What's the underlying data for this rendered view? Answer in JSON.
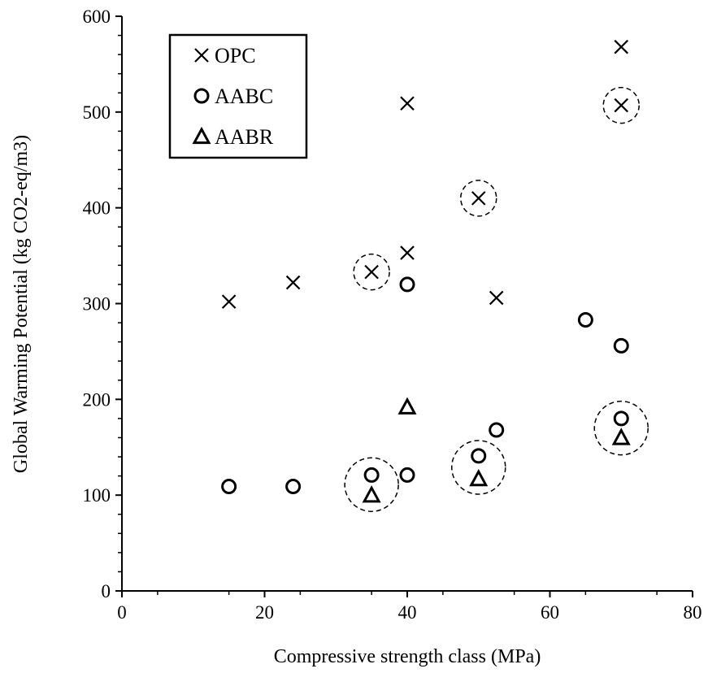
{
  "chart_data": {
    "type": "scatter",
    "title": "",
    "xlabel": "Compressive strength class (MPa)",
    "ylabel": "Global Warming Potential (kg CO2-eq/m3)",
    "xlim": [
      0,
      80
    ],
    "ylim": [
      0,
      600
    ],
    "x_ticks": [
      "0",
      "20",
      "40",
      "60",
      "80"
    ],
    "y_ticks": [
      "0",
      "100",
      "200",
      "300",
      "400",
      "500",
      "600"
    ],
    "grid": false,
    "legend_position": "top-left",
    "series": [
      {
        "name": "OPC",
        "marker": "cross",
        "points": [
          {
            "x": 15,
            "y": 302
          },
          {
            "x": 24,
            "y": 322
          },
          {
            "x": 35,
            "y": 333
          },
          {
            "x": 40,
            "y": 353
          },
          {
            "x": 40,
            "y": 509
          },
          {
            "x": 50,
            "y": 410
          },
          {
            "x": 52.5,
            "y": 306
          },
          {
            "x": 70,
            "y": 507
          },
          {
            "x": 70,
            "y": 568
          }
        ]
      },
      {
        "name": "AABC",
        "marker": "circle",
        "points": [
          {
            "x": 15,
            "y": 109
          },
          {
            "x": 24,
            "y": 109
          },
          {
            "x": 35,
            "y": 121
          },
          {
            "x": 40,
            "y": 121
          },
          {
            "x": 40,
            "y": 320
          },
          {
            "x": 50,
            "y": 141
          },
          {
            "x": 52.5,
            "y": 168
          },
          {
            "x": 65,
            "y": 283
          },
          {
            "x": 70,
            "y": 256
          },
          {
            "x": 70,
            "y": 180
          }
        ]
      },
      {
        "name": "AABR",
        "marker": "triangle",
        "points": [
          {
            "x": 35,
            "y": 100
          },
          {
            "x": 40,
            "y": 192
          },
          {
            "x": 50,
            "y": 117
          },
          {
            "x": 70,
            "y": 160
          }
        ]
      }
    ],
    "annotations": [
      {
        "type": "dashed-circle",
        "x": 35,
        "y": 333,
        "size": "small"
      },
      {
        "type": "dashed-circle",
        "x": 50,
        "y": 410,
        "size": "small"
      },
      {
        "type": "dashed-circle",
        "x": 70,
        "y": 507,
        "size": "small"
      },
      {
        "type": "dashed-circle",
        "x": 35,
        "y": 111,
        "size": "large"
      },
      {
        "type": "dashed-circle",
        "x": 50,
        "y": 129,
        "size": "large"
      },
      {
        "type": "dashed-circle",
        "x": 70,
        "y": 170,
        "size": "large"
      }
    ]
  }
}
